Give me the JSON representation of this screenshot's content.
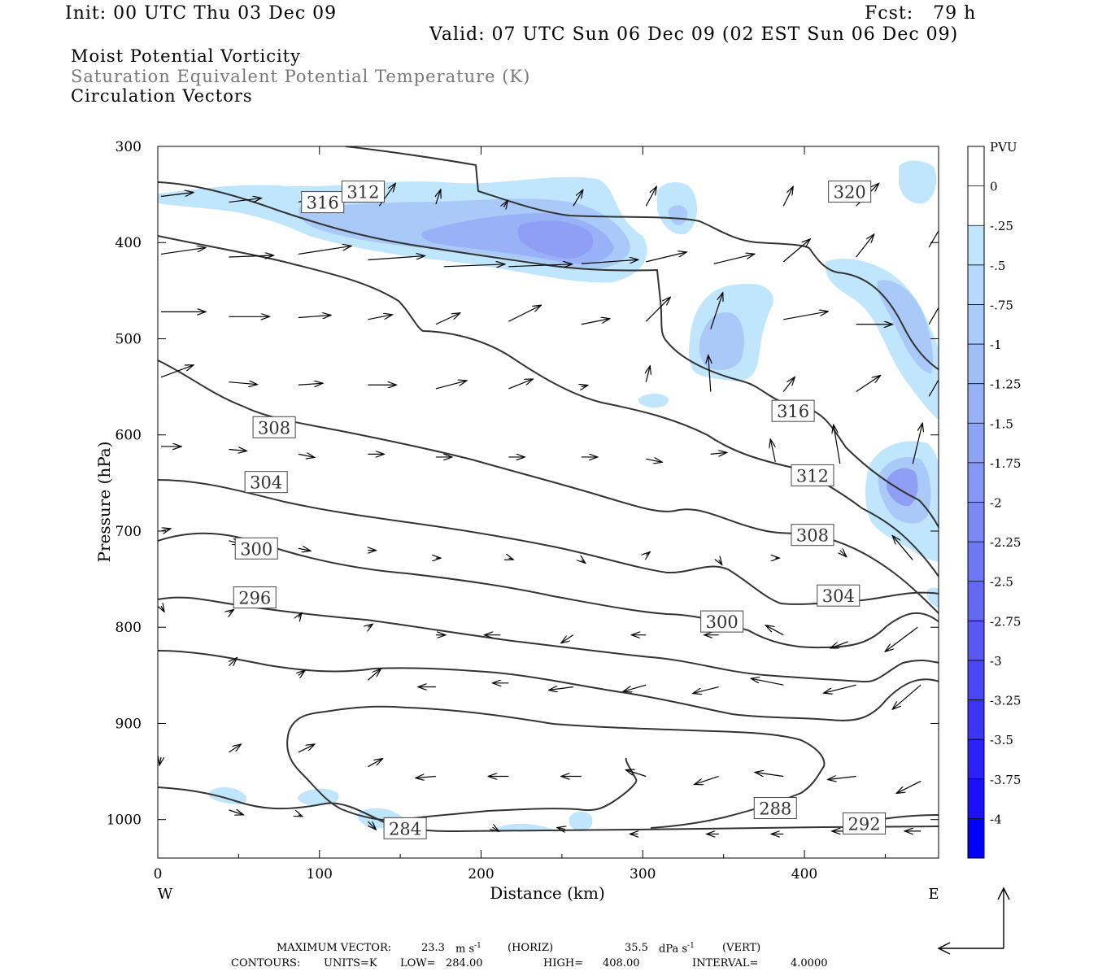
{
  "header": {
    "init": "Init: 00 UTC Thu 03 Dec 09",
    "fcst": "Fcst:   79 h",
    "valid": "Valid: 07 UTC Sun 06 Dec 09 (02 EST Sun 06 Dec 09)"
  },
  "fields": {
    "line1": "Moist Potential Vorticity",
    "line2": "Saturation Equivalent Potential Temperature (K)",
    "line3": "Circulation Vectors"
  },
  "colors": {
    "pv_light": "#bfe6fc",
    "pv_mid": "#a9bcf6",
    "pv_strong": "#8f93f1",
    "contour": "#333333"
  },
  "chart_data": {
    "type": "cross-section",
    "xlabel": "Distance (km)",
    "ylabel": "Pressure (hPa)",
    "xlim": [
      0,
      483
    ],
    "ylim": [
      1040,
      300
    ],
    "x_ticks": [
      "0",
      "100",
      "200",
      "300",
      "400"
    ],
    "y_ticks": [
      "300",
      "400",
      "500",
      "600",
      "700",
      "800",
      "900",
      "1000"
    ],
    "x_ends": {
      "left": "W",
      "right": "E"
    },
    "colorbar": {
      "unit": "PVU",
      "levels": [
        "0",
        "-.25",
        "-.5",
        "-.75",
        "-1",
        "-1.25",
        "-1.5",
        "-1.75",
        "-2",
        "-2.25",
        "-2.5",
        "-2.75",
        "-3",
        "-3.25",
        "-3.5",
        "-3.75",
        "-4"
      ],
      "colors": [
        "#ffffff",
        "#ffffff",
        "#bfe6fc",
        "#b4d9fb",
        "#a9ccf9",
        "#a0bff8",
        "#98b1f7",
        "#8ea3f6",
        "#8596f5",
        "#7a87f4",
        "#6f78f4",
        "#6468f3",
        "#5758f4",
        "#4a48f5",
        "#3b36f7",
        "#2b22f9",
        "#1a10fb",
        "#0000ff"
      ]
    },
    "contour_labels": [
      {
        "text": "316",
        "x": 102,
        "p": 358
      },
      {
        "text": "312",
        "x": 127,
        "p": 347
      },
      {
        "text": "320",
        "x": 428,
        "p": 347
      },
      {
        "text": "308",
        "x": 72,
        "p": 592
      },
      {
        "text": "316",
        "x": 393,
        "p": 575
      },
      {
        "text": "304",
        "x": 67,
        "p": 649
      },
      {
        "text": "312",
        "x": 405,
        "p": 642
      },
      {
        "text": "300",
        "x": 61,
        "p": 718
      },
      {
        "text": "308",
        "x": 405,
        "p": 704
      },
      {
        "text": "296",
        "x": 60,
        "p": 769
      },
      {
        "text": "304",
        "x": 421,
        "p": 767
      },
      {
        "text": "300",
        "x": 349,
        "p": 794
      },
      {
        "text": "288",
        "x": 382,
        "p": 988
      },
      {
        "text": "284",
        "x": 153,
        "p": 1009
      },
      {
        "text": "292",
        "x": 437,
        "p": 1004
      }
    ],
    "contours": {
      "units": "K",
      "low": "284.00",
      "high": "408.00",
      "interval": "4.0000"
    },
    "max_vector": {
      "horiz": "23.3",
      "horiz_unit": "m s",
      "horiz_tag": "(HORIZ)",
      "vert": "35.5",
      "vert_unit": "dPa s",
      "vert_tag": "(VERT)"
    }
  },
  "footer": {
    "maxvec_label": "MAXIMUM VECTOR:",
    "contours_label": "CONTOURS:",
    "units_label": "UNITS=K",
    "low_label": "LOW=",
    "high_label": "HIGH=",
    "interval_label": "INTERVAL="
  }
}
